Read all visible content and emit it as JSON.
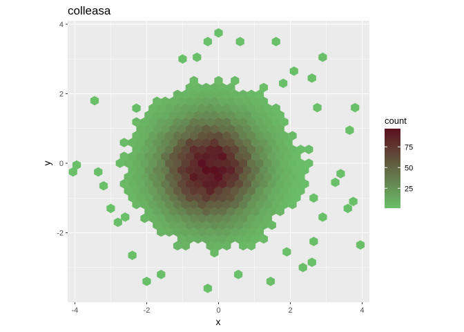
{
  "chart_data": {
    "type": "hexbin",
    "title": "colleasa",
    "xlabel": "x",
    "ylabel": "y",
    "xlim": [
      -4.2,
      4.2
    ],
    "ylim": [
      -4.0,
      4.1
    ],
    "x_ticks": [
      -4,
      -2,
      0,
      2,
      4
    ],
    "y_ticks": [
      -2,
      0,
      2,
      4
    ],
    "grid": true,
    "background": "#ebebeb",
    "legend": {
      "title": "count",
      "placement": "right",
      "ticks": [
        25,
        50,
        75
      ],
      "range": [
        1,
        97
      ],
      "low_color": "#6abf69",
      "high_color": "#5b0f1f"
    },
    "hex_size": 0.132,
    "density": {
      "center": [
        -0.25,
        -0.15
      ],
      "sigma": [
        0.95,
        1.0
      ],
      "peak": 97
    },
    "extent": {
      "a": 2.5,
      "b": 2.45,
      "center": [
        -0.15,
        -0.05
      ]
    },
    "outliers": [
      [
        -3.95,
        -0.05
      ],
      [
        -4.05,
        -0.25
      ],
      [
        -3.35,
        -0.25
      ],
      [
        -3.45,
        1.8
      ],
      [
        -3.2,
        -0.65
      ],
      [
        -3.0,
        -1.3
      ],
      [
        -2.8,
        -1.7
      ],
      [
        -2.0,
        -3.4
      ],
      [
        -1.6,
        -3.2
      ],
      [
        -0.3,
        3.5
      ],
      [
        0.0,
        3.75
      ],
      [
        0.6,
        3.5
      ],
      [
        1.6,
        3.5
      ],
      [
        2.9,
        3.05
      ],
      [
        3.8,
        1.6
      ],
      [
        3.65,
        0.95
      ],
      [
        3.4,
        -0.3
      ],
      [
        3.6,
        -1.3
      ],
      [
        3.75,
        -1.1
      ],
      [
        3.95,
        -2.35
      ],
      [
        2.6,
        -2.85
      ],
      [
        2.35,
        -3.0
      ],
      [
        2.65,
        -1.0
      ],
      [
        2.9,
        -1.55
      ],
      [
        1.45,
        -3.4
      ],
      [
        -0.3,
        -3.6
      ],
      [
        0.55,
        -3.2
      ],
      [
        2.6,
        2.45
      ],
      [
        2.1,
        2.65
      ],
      [
        2.75,
        1.6
      ],
      [
        1.8,
        2.3
      ],
      [
        3.25,
        -0.55
      ],
      [
        -2.6,
        -1.55
      ],
      [
        -2.4,
        -2.65
      ],
      [
        1.9,
        -2.55
      ],
      [
        -1.0,
        3.0
      ],
      [
        -0.6,
        3.05
      ],
      [
        2.65,
        -2.25
      ]
    ]
  }
}
